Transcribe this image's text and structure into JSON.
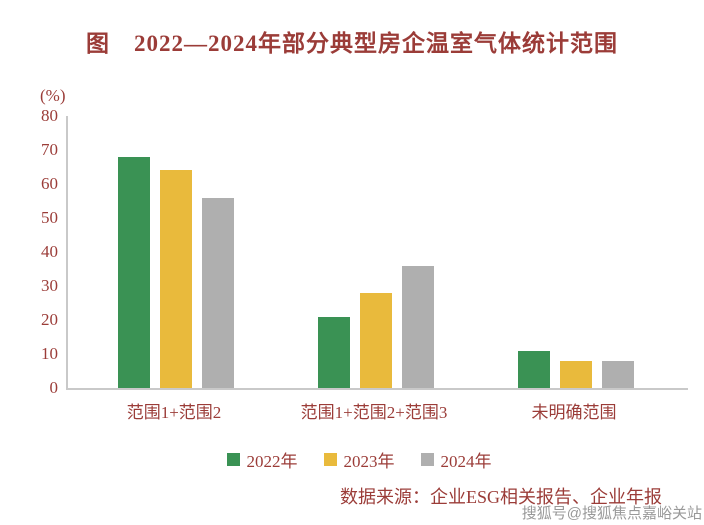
{
  "title": "图　2022—2024年部分典型房企温室气体统计范围",
  "chart_data": {
    "type": "bar",
    "title": "2022—2024年部分典型房企温室气体统计范围",
    "unit_label": "(%)",
    "categories": [
      "范围1+范围2",
      "范围1+范围2+范围3",
      "未明确范围"
    ],
    "series": [
      {
        "name": "2022年",
        "color": "#3A9254",
        "values": [
          68,
          21,
          11
        ]
      },
      {
        "name": "2023年",
        "color": "#E9BA3C",
        "values": [
          64,
          28,
          8
        ]
      },
      {
        "name": "2024年",
        "color": "#AFAFAF",
        "values": [
          56,
          36,
          8
        ]
      }
    ],
    "ylim": [
      0,
      80
    ],
    "yticks": [
      0,
      10,
      20,
      30,
      40,
      50,
      60,
      70,
      80
    ],
    "grid": false,
    "legend_position": "bottom",
    "text_color": "#9B3C38",
    "axis_color": "#C9C9C9"
  },
  "source_note": "数据来源：企业ESG相关报告、企业年报",
  "watermark": "搜狐号@搜狐焦点嘉峪关站"
}
